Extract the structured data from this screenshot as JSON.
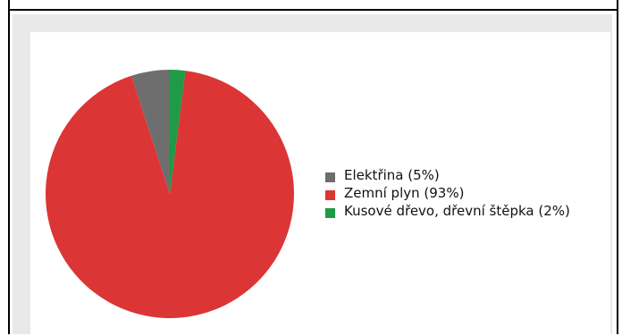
{
  "chart_data": {
    "type": "pie",
    "title": "",
    "slices": [
      {
        "label": "Elektřina (5%)",
        "value": 5,
        "color": "#6e6e6e"
      },
      {
        "label": "Zemní plyn (93%)",
        "value": 93,
        "color": "#dc3535"
      },
      {
        "label": "Kusové dřevo, dřevní štěpka (2%)",
        "value": 2,
        "color": "#1f9a46"
      }
    ],
    "legend_position": "right"
  }
}
